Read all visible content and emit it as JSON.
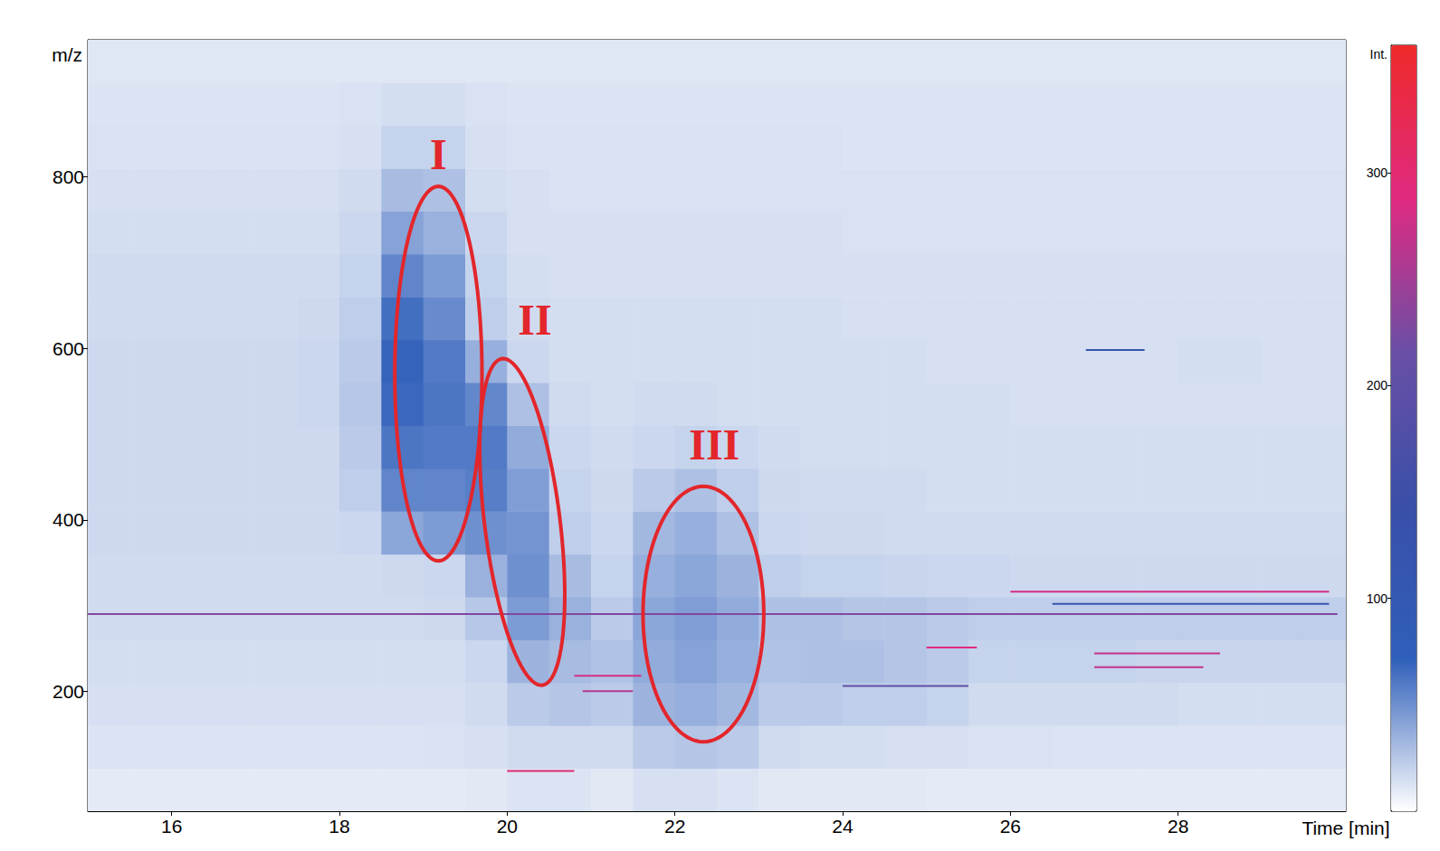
{
  "chart_data": {
    "type": "heatmap",
    "x_label": "Time [min]",
    "y_label": "m/z",
    "xlim": [
      15,
      30
    ],
    "xticks": [
      16,
      18,
      20,
      22,
      24,
      26,
      28
    ],
    "ylim": [
      60,
      960
    ],
    "yticks": [
      200,
      400,
      600,
      800
    ],
    "heatmap": {
      "x": [
        15.25,
        15.75,
        16.25,
        16.75,
        17.25,
        17.75,
        18.25,
        18.75,
        19.25,
        19.75,
        20.25,
        20.75,
        21.25,
        21.75,
        22.25,
        22.75,
        23.25,
        23.75,
        24.25,
        24.75,
        25.25,
        25.75,
        26.25,
        26.75,
        27.25,
        27.75,
        28.25,
        28.75,
        29.25,
        29.75
      ],
      "y": [
        85,
        135,
        185,
        235,
        285,
        335,
        385,
        435,
        485,
        535,
        585,
        635,
        685,
        735,
        785,
        835,
        885,
        935
      ],
      "values": [
        [
          9,
          9,
          9,
          9,
          9,
          9,
          9,
          9,
          9,
          10,
          12,
          12,
          10,
          14,
          14,
          12,
          10,
          10,
          10,
          10,
          9,
          9,
          9,
          9,
          9,
          9,
          9,
          9,
          9,
          9
        ],
        [
          12,
          12,
          12,
          12,
          12,
          12,
          12,
          12,
          13,
          14,
          16,
          16,
          16,
          24,
          26,
          24,
          16,
          15,
          15,
          14,
          14,
          13,
          13,
          12,
          12,
          12,
          12,
          12,
          12,
          12
        ],
        [
          14,
          14,
          14,
          14,
          14,
          14,
          14,
          14,
          14,
          16,
          24,
          26,
          24,
          34,
          36,
          32,
          24,
          24,
          22,
          22,
          20,
          16,
          16,
          16,
          16,
          16,
          15,
          15,
          15,
          15
        ],
        [
          15,
          15,
          15,
          15,
          15,
          15,
          15,
          15,
          15,
          18,
          34,
          30,
          27,
          38,
          42,
          36,
          27,
          28,
          28,
          26,
          24,
          20,
          20,
          20,
          20,
          19,
          19,
          19,
          19,
          19
        ],
        [
          16,
          16,
          16,
          16,
          16,
          16,
          16,
          16,
          17,
          25,
          45,
          35,
          24,
          40,
          44,
          38,
          28,
          28,
          26,
          26,
          24,
          22,
          22,
          22,
          22,
          22,
          22,
          22,
          22,
          22
        ],
        [
          16,
          16,
          16,
          16,
          16,
          16,
          16,
          17,
          18,
          35,
          50,
          30,
          20,
          36,
          40,
          34,
          22,
          20,
          20,
          19,
          18,
          18,
          17,
          17,
          17,
          17,
          17,
          17,
          17,
          17
        ],
        [
          17,
          17,
          17,
          17,
          17,
          17,
          18,
          40,
          45,
          50,
          48,
          22,
          18,
          32,
          36,
          28,
          18,
          17,
          17,
          16,
          16,
          16,
          16,
          16,
          16,
          16,
          16,
          16,
          16,
          16
        ],
        [
          17,
          17,
          17,
          17,
          17,
          17,
          22,
          55,
          55,
          58,
          44,
          20,
          17,
          24,
          28,
          22,
          17,
          16,
          16,
          16,
          15,
          15,
          15,
          15,
          15,
          15,
          15,
          15,
          15,
          15
        ],
        [
          17,
          17,
          17,
          17,
          17,
          17,
          24,
          62,
          60,
          60,
          38,
          18,
          16,
          18,
          20,
          18,
          16,
          15,
          15,
          15,
          15,
          15,
          15,
          15,
          15,
          15,
          15,
          15,
          15,
          15
        ],
        [
          17,
          17,
          17,
          17,
          17,
          18,
          25,
          68,
          62,
          54,
          28,
          16,
          15,
          16,
          16,
          15,
          15,
          15,
          15,
          15,
          15,
          15,
          14,
          14,
          14,
          14,
          14,
          14,
          14,
          14
        ],
        [
          17,
          17,
          17,
          17,
          17,
          18,
          24,
          70,
          60,
          36,
          18,
          15,
          15,
          15,
          15,
          15,
          15,
          15,
          15,
          15,
          14,
          14,
          14,
          14,
          14,
          14,
          15,
          15,
          14,
          14
        ],
        [
          16,
          16,
          16,
          16,
          16,
          17,
          22,
          65,
          52,
          22,
          16,
          15,
          15,
          15,
          15,
          15,
          15,
          15,
          14,
          14,
          14,
          14,
          14,
          14,
          14,
          14,
          14,
          14,
          14,
          14
        ],
        [
          16,
          16,
          16,
          16,
          16,
          16,
          20,
          55,
          45,
          20,
          15,
          14,
          14,
          14,
          14,
          14,
          14,
          14,
          14,
          14,
          14,
          14,
          14,
          14,
          14,
          14,
          14,
          14,
          14,
          14
        ],
        [
          15,
          15,
          15,
          15,
          15,
          15,
          18,
          42,
          35,
          18,
          14,
          14,
          14,
          14,
          14,
          14,
          14,
          14,
          13,
          13,
          13,
          13,
          13,
          13,
          13,
          13,
          13,
          13,
          13,
          13
        ],
        [
          14,
          14,
          14,
          14,
          14,
          14,
          16,
          30,
          28,
          15,
          14,
          13,
          13,
          13,
          13,
          13,
          13,
          13,
          13,
          13,
          13,
          13,
          13,
          13,
          13,
          13,
          13,
          13,
          13,
          13
        ],
        [
          13,
          13,
          13,
          13,
          13,
          13,
          14,
          20,
          20,
          14,
          13,
          13,
          13,
          13,
          13,
          13,
          13,
          13,
          12,
          12,
          12,
          12,
          12,
          12,
          12,
          12,
          12,
          12,
          12,
          12
        ],
        [
          12,
          12,
          12,
          12,
          12,
          12,
          13,
          15,
          15,
          13,
          12,
          12,
          12,
          12,
          12,
          12,
          12,
          12,
          12,
          12,
          12,
          12,
          12,
          12,
          12,
          12,
          12,
          12,
          12,
          12
        ],
        [
          11,
          11,
          11,
          11,
          11,
          11,
          11,
          11,
          11,
          11,
          11,
          11,
          11,
          11,
          11,
          11,
          11,
          11,
          11,
          11,
          11,
          11,
          11,
          11,
          11,
          11,
          11,
          11,
          11,
          11
        ]
      ]
    },
    "colorbar": {
      "label": "Int.",
      "range": [
        0,
        360
      ],
      "ticks": [
        100,
        200,
        300
      ]
    },
    "traces": [
      {
        "mz": 290,
        "x": [
          15,
          29.9
        ],
        "intensity": 230
      },
      {
        "mz": 316,
        "x": [
          26,
          29.8
        ],
        "intensity": 280
      },
      {
        "mz": 302,
        "x": [
          26.5,
          29.8
        ],
        "intensity": 120
      },
      {
        "mz": 107,
        "x": [
          20,
          20.8
        ],
        "intensity": 300
      },
      {
        "mz": 218,
        "x": [
          20.8,
          21.6
        ],
        "intensity": 280
      },
      {
        "mz": 200,
        "x": [
          20.9,
          21.5
        ],
        "intensity": 260
      },
      {
        "mz": 251,
        "x": [
          25,
          25.6
        ],
        "intensity": 290
      },
      {
        "mz": 244,
        "x": [
          27,
          28.5
        ],
        "intensity": 270
      },
      {
        "mz": 228,
        "x": [
          27,
          28.3
        ],
        "intensity": 270
      },
      {
        "mz": 206,
        "x": [
          24,
          25.5
        ],
        "intensity": 200
      },
      {
        "mz": 598,
        "x": [
          26.9,
          27.6
        ],
        "intensity": 120
      }
    ],
    "annotations": [
      {
        "text": "I",
        "top": [
          19.18,
          789
        ],
        "bottom": [
          19.18,
          352
        ],
        "half_width": 0.52,
        "label_at": [
          19.18,
          827
        ]
      },
      {
        "text": "II",
        "top": [
          19.94,
          588
        ],
        "bottom": [
          20.42,
          207
        ],
        "half_width": 0.45,
        "label_at": [
          20.33,
          633
        ]
      },
      {
        "text": "III",
        "top": [
          22.34,
          439
        ],
        "bottom": [
          22.34,
          141
        ],
        "half_width": 0.72,
        "label_at": [
          22.47,
          488
        ]
      }
    ]
  }
}
